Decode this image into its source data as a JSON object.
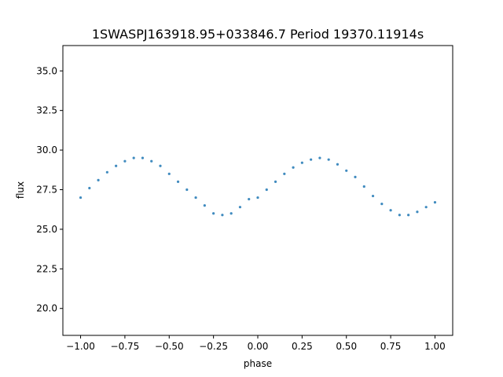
{
  "chart_data": {
    "type": "scatter",
    "title": "1SWASPJ163918.95+033846.7 Period 19370.11914s",
    "xlabel": "phase",
    "ylabel": "flux",
    "xlim": [
      -1.1,
      1.1
    ],
    "ylim": [
      18.3,
      36.6
    ],
    "x_ticks": [
      -1.0,
      -0.75,
      -0.5,
      -0.25,
      0.0,
      0.25,
      0.5,
      0.75,
      1.0
    ],
    "x_tick_labels": [
      "−1.00",
      "−0.75",
      "−0.50",
      "−0.25",
      "0.00",
      "0.25",
      "0.50",
      "0.75",
      "1.00"
    ],
    "y_ticks": [
      20.0,
      22.5,
      25.0,
      27.5,
      30.0,
      32.5,
      35.0
    ],
    "y_tick_labels": [
      "20.0",
      "22.5",
      "25.0",
      "27.5",
      "30.0",
      "32.5",
      "35.0"
    ],
    "grid": false,
    "marker_color": "#1f77b4",
    "series": [
      {
        "x": [
          -1.0,
          -0.95,
          -0.9,
          -0.85,
          -0.8,
          -0.75,
          -0.7,
          -0.65,
          -0.6,
          -0.55,
          -0.5,
          -0.45,
          -0.4,
          -0.35,
          -0.3,
          -0.25,
          -0.2,
          -0.15,
          -0.1,
          -0.05,
          0.0,
          0.05,
          0.1,
          0.15,
          0.2,
          0.25,
          0.3,
          0.35,
          0.4,
          0.45,
          0.5,
          0.55,
          0.6,
          0.65,
          0.7,
          0.75,
          0.8,
          0.85,
          0.9,
          0.95,
          1.0
        ],
        "y": [
          27.0,
          27.6,
          28.1,
          28.6,
          29.0,
          29.3,
          29.5,
          29.5,
          29.3,
          29.0,
          28.5,
          28.0,
          27.5,
          27.0,
          26.5,
          26.0,
          25.9,
          26.0,
          26.4,
          26.9,
          27.0,
          27.5,
          28.0,
          28.5,
          28.9,
          29.2,
          29.4,
          29.5,
          29.4,
          29.1,
          28.7,
          28.3,
          27.7,
          27.1,
          26.6,
          26.2,
          25.9,
          25.9,
          26.1,
          26.4,
          26.7
        ]
      }
    ]
  }
}
